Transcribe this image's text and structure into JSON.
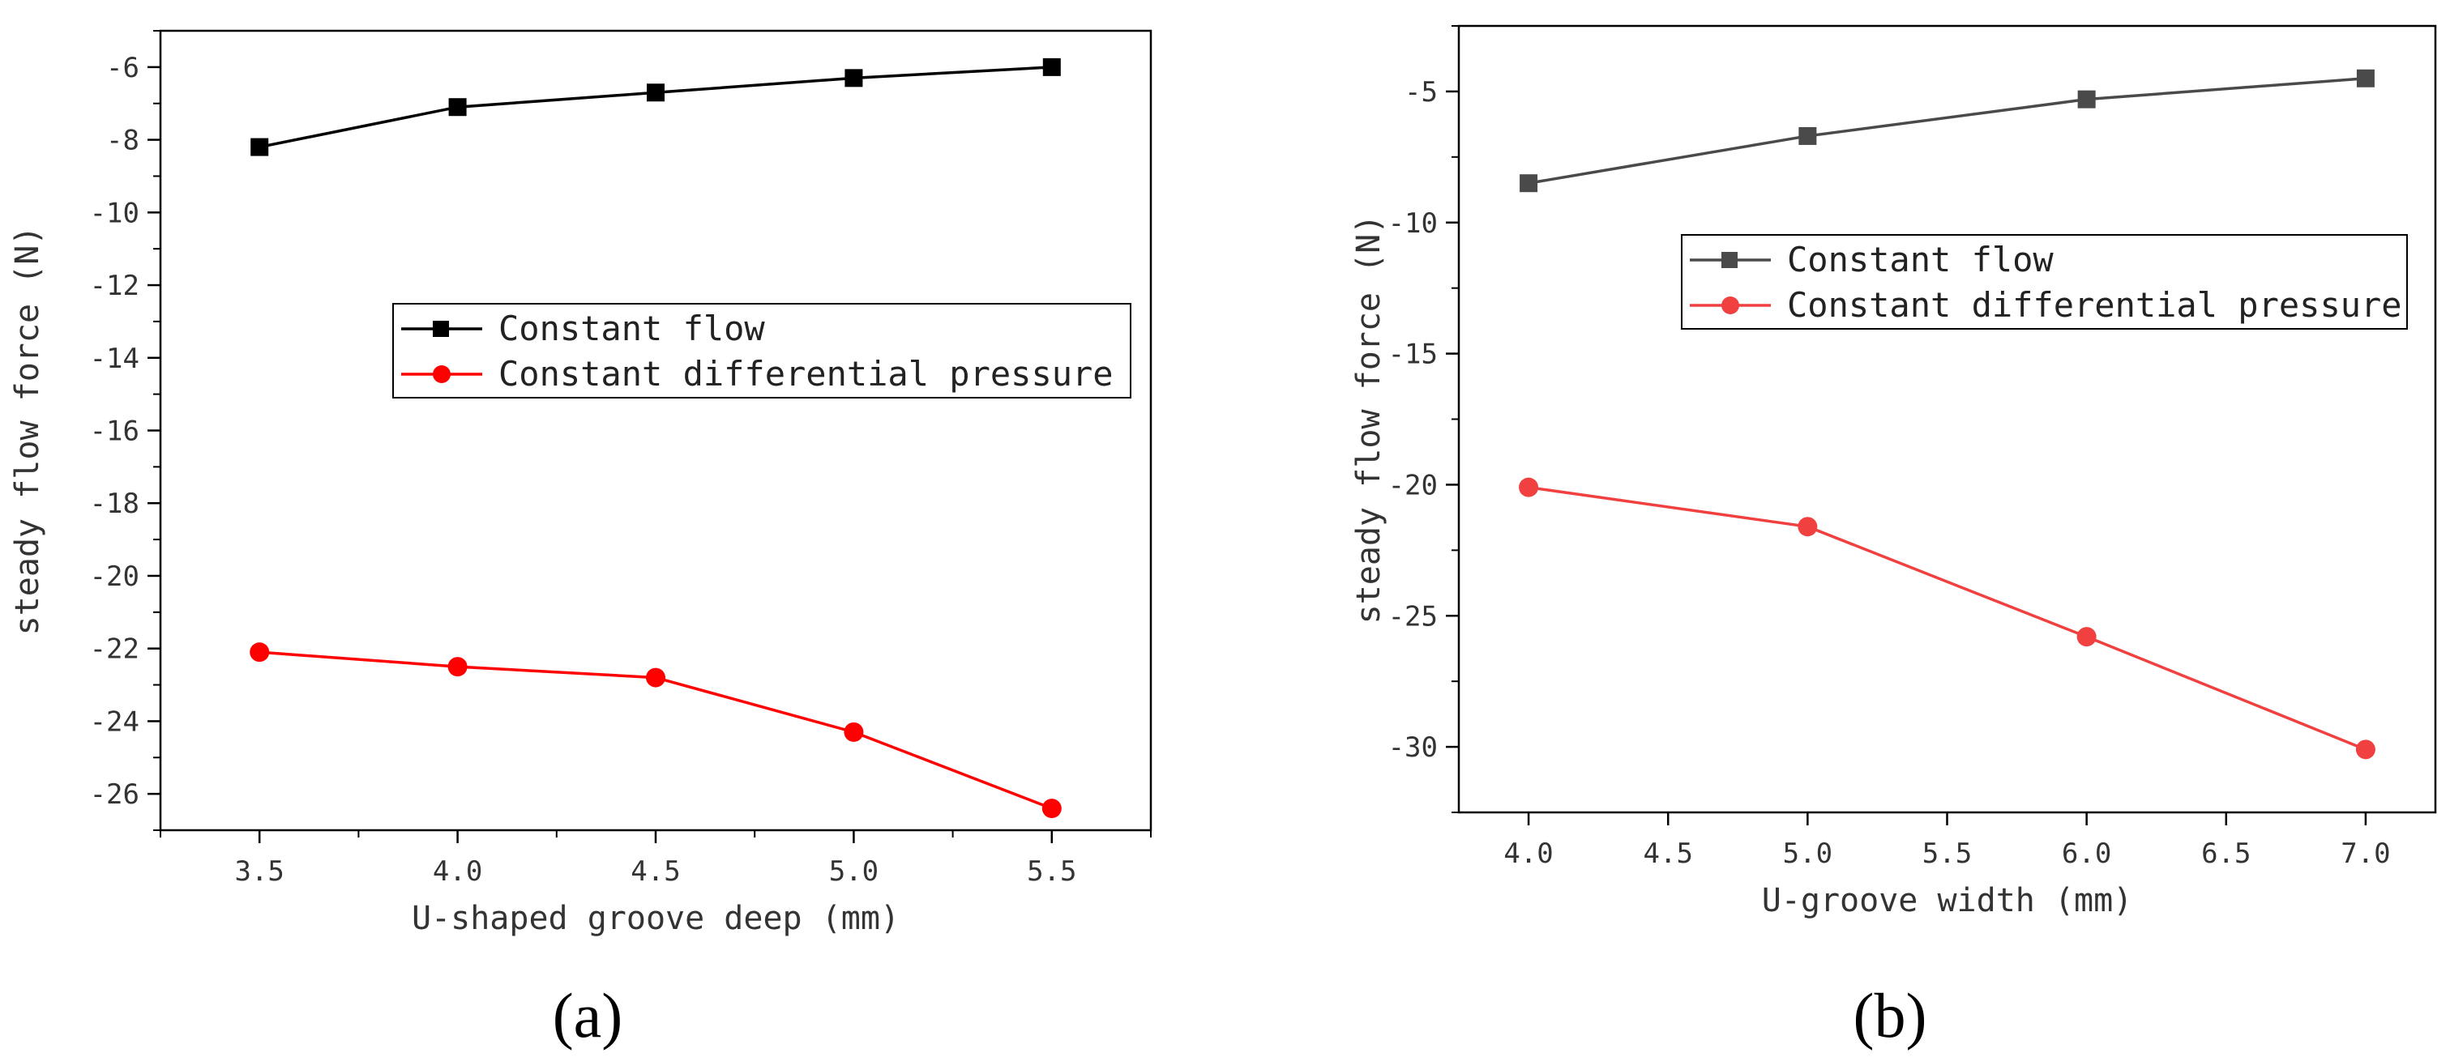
{
  "chart_data": [
    {
      "panel": "(a)",
      "type": "line",
      "xlabel": "U-shaped groove deep (mm)",
      "ylabel": "steady flow force (N)",
      "xlim": [
        3.25,
        5.75
      ],
      "ylim": [
        -27,
        -5
      ],
      "xticks": [
        3.5,
        4.0,
        4.5,
        5.0,
        5.5
      ],
      "xtick_labels": [
        "3.5",
        "4.0",
        "4.5",
        "5.0",
        "5.5"
      ],
      "yticks": [
        -26,
        -24,
        -22,
        -20,
        -18,
        -16,
        -14,
        -12,
        -10,
        -8,
        -6
      ],
      "ytick_labels": [
        "-26",
        "-24",
        "-22",
        "-20",
        "-18",
        "-16",
        "-14",
        "-12",
        "-10",
        "-8",
        "-6"
      ],
      "legend_position": "center-right",
      "x": [
        3.5,
        4.0,
        4.5,
        5.0,
        5.5
      ],
      "series": [
        {
          "name": "Constant flow",
          "color": "#000000",
          "marker": "square",
          "values": [
            -8.2,
            -7.1,
            -6.7,
            -6.3,
            -6.0
          ]
        },
        {
          "name": "Constant differential pressure",
          "color": "#ff0000",
          "marker": "circle",
          "values": [
            -22.1,
            -22.5,
            -22.8,
            -24.3,
            -26.4
          ]
        }
      ]
    },
    {
      "panel": "(b)",
      "type": "line",
      "xlabel": "U-groove width (mm)",
      "ylabel": "steady flow force (N)",
      "xlim": [
        3.75,
        7.25
      ],
      "ylim": [
        -32.5,
        -2.5
      ],
      "xticks": [
        4.0,
        4.5,
        5.0,
        5.5,
        6.0,
        6.5,
        7.0
      ],
      "xtick_labels": [
        "4.0",
        "4.5",
        "5.0",
        "5.5",
        "6.0",
        "6.5",
        "7.0"
      ],
      "yticks": [
        -30,
        -25,
        -20,
        -15,
        -10,
        -5
      ],
      "ytick_labels": [
        "-30",
        "-25",
        "-20",
        "-15",
        "-10",
        "-5"
      ],
      "legend_position": "upper-right",
      "x": [
        4.0,
        5.0,
        6.0,
        7.0
      ],
      "series": [
        {
          "name": "Constant flow",
          "color": "#4a4a4a",
          "marker": "square",
          "values": [
            -8.5,
            -6.7,
            -5.3,
            -4.5
          ]
        },
        {
          "name": "Constant differential pressure",
          "color": "#f04040",
          "marker": "circle",
          "values": [
            -20.1,
            -21.6,
            -25.8,
            -30.1
          ]
        }
      ]
    }
  ]
}
